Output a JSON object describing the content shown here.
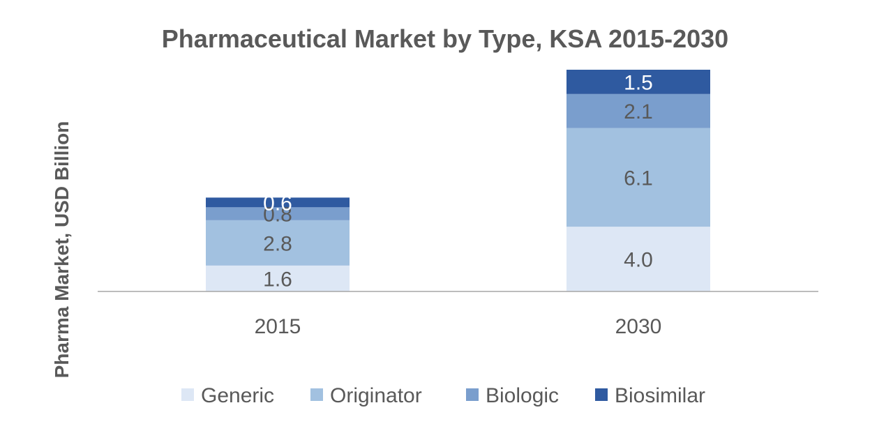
{
  "chart_data": {
    "type": "bar",
    "stacked": true,
    "title": "Pharmaceutical Market by Type, KSA  2015-2030",
    "xlabel": "",
    "ylabel": "Pharma Market, USD Billion",
    "categories": [
      "2015",
      "2030"
    ],
    "series": [
      {
        "name": "Generic",
        "values": [
          1.6,
          4.0
        ],
        "labels": [
          "1.6",
          "4.0"
        ],
        "color": "#dde7f5",
        "label_color": "#595959"
      },
      {
        "name": "Originator",
        "values": [
          2.8,
          6.1
        ],
        "labels": [
          "2.8",
          "6.1"
        ],
        "color": "#a2c1e0",
        "label_color": "#595959"
      },
      {
        "name": "Biologic",
        "values": [
          0.8,
          2.1
        ],
        "labels": [
          "0.8",
          "2.1"
        ],
        "color": "#7a9ecd",
        "label_color": "#595959"
      },
      {
        "name": "Biosimilar",
        "values": [
          0.6,
          1.5
        ],
        "labels": [
          "0.6",
          "1.5"
        ],
        "color": "#2f5aa0",
        "label_color": "#ffffff"
      }
    ],
    "ylim": [
      0,
      13.7
    ],
    "grid": false,
    "legend_position": "bottom"
  },
  "colors": {
    "axis": "#a6a6a6",
    "text": "#595959"
  }
}
